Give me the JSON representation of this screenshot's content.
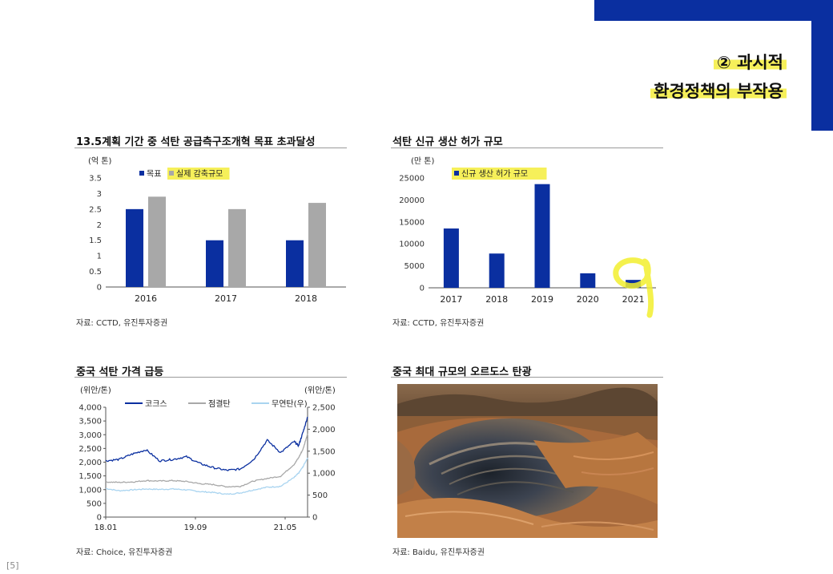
{
  "header": {
    "line1": "② 과시적",
    "line2": "환경정책의 부작용"
  },
  "page_number": "[5]",
  "panels": {
    "capacity": {
      "title": "13.5계획 기간 중 석탄 공급측구조개혁 목표 초과달성",
      "source": "자료: CCTD, 유진투자증권"
    },
    "approvals": {
      "title": "석탄 신규 생산 허가 규모",
      "source": "자료: CCTD, 유진투자증권"
    },
    "prices": {
      "title": "중국 석탄 가격 급등",
      "source": "자료: Choice, 유진투자증권"
    },
    "mine": {
      "title": "중국 최대 규모의 오르도스 탄광",
      "source": "자료: Baidu, 유진투자증권"
    }
  },
  "colors": {
    "navy": "#0a2fa0",
    "gray": "#a8a8a8",
    "light_blue": "#a9d4f0",
    "highlight": "#f6f05a",
    "axis": "#555555"
  },
  "chart_data": [
    {
      "id": "capacity",
      "type": "bar",
      "unit_label": "(억 톤)",
      "categories": [
        "2016",
        "2017",
        "2018"
      ],
      "series": [
        {
          "name": "목표",
          "values": [
            2.5,
            1.5,
            1.5
          ],
          "color": "#0a2fa0"
        },
        {
          "name": "실제 감축규모",
          "values": [
            2.9,
            2.5,
            2.7
          ],
          "color": "#a8a8a8"
        }
      ],
      "ylim": [
        0,
        3.5
      ],
      "yticks": [
        "0",
        "0.5",
        "1",
        "1.5",
        "2",
        "2.5",
        "3",
        "3.5"
      ],
      "legend": "top-left",
      "grid": false
    },
    {
      "id": "approvals",
      "type": "bar",
      "unit_label": "(만 톤)",
      "categories": [
        "2017",
        "2018",
        "2019",
        "2020",
        "2021"
      ],
      "series": [
        {
          "name": "신규 생산 허가 규모",
          "values": [
            13500,
            7800,
            23600,
            3300,
            1800
          ],
          "color": "#0a2fa0"
        }
      ],
      "ylim": [
        0,
        25000
      ],
      "yticks": [
        "0",
        "5000",
        "10000",
        "15000",
        "20000",
        "25000"
      ],
      "legend": "top-left",
      "grid": false
    },
    {
      "id": "prices",
      "type": "line",
      "unit_label_left": "(위안/톤)",
      "unit_label_right": "(위안/톤)",
      "x_range": [
        "2018-01",
        "2021-10"
      ],
      "xticks": [
        "18.01",
        "19.09",
        "21.05"
      ],
      "ylim_left": [
        0,
        4000
      ],
      "yticks_left": [
        "0",
        "500",
        "1,000",
        "1,500",
        "2,000",
        "2,500",
        "3,000",
        "3,500",
        "4,000"
      ],
      "ylim_right": [
        0,
        2500
      ],
      "yticks_right": [
        "0",
        "500",
        "1,000",
        "1,500",
        "2,000",
        "2,500"
      ],
      "legend": "top",
      "grid": false,
      "series": [
        {
          "name": "코크스",
          "axis": "left",
          "color": "#0a2fa0",
          "x": [
            "2018-01",
            "2018-04",
            "2018-07",
            "2018-10",
            "2019-01",
            "2019-04",
            "2019-07",
            "2019-10",
            "2020-01",
            "2020-04",
            "2020-07",
            "2020-10",
            "2021-01",
            "2021-04",
            "2021-07",
            "2021-08",
            "2021-09",
            "2021-10"
          ],
          "values": [
            2050,
            2100,
            2300,
            2450,
            2050,
            2100,
            2200,
            1950,
            1800,
            1700,
            1750,
            2100,
            2800,
            2350,
            2750,
            2600,
            3100,
            3650
          ]
        },
        {
          "name": "점결탄",
          "axis": "right",
          "color": "#a8a8a8",
          "x": [
            "2018-01",
            "2018-04",
            "2018-07",
            "2018-10",
            "2019-01",
            "2019-04",
            "2019-07",
            "2019-10",
            "2020-01",
            "2020-04",
            "2020-07",
            "2020-10",
            "2021-01",
            "2021-04",
            "2021-07",
            "2021-08",
            "2021-09",
            "2021-10"
          ],
          "values": [
            800,
            790,
            800,
            830,
            820,
            830,
            810,
            760,
            740,
            690,
            700,
            820,
            880,
            930,
            1200,
            1350,
            1550,
            1900
          ]
        },
        {
          "name": "무연탄(우)",
          "axis": "right",
          "color": "#a9d4f0",
          "x": [
            "2018-01",
            "2018-04",
            "2018-07",
            "2018-10",
            "2019-01",
            "2019-04",
            "2019-07",
            "2019-10",
            "2020-01",
            "2020-04",
            "2020-07",
            "2020-10",
            "2021-01",
            "2021-04",
            "2021-07",
            "2021-08",
            "2021-09",
            "2021-10"
          ],
          "values": [
            650,
            600,
            620,
            640,
            630,
            640,
            620,
            580,
            560,
            520,
            550,
            620,
            680,
            700,
            900,
            1000,
            1150,
            1350
          ]
        }
      ]
    }
  ]
}
